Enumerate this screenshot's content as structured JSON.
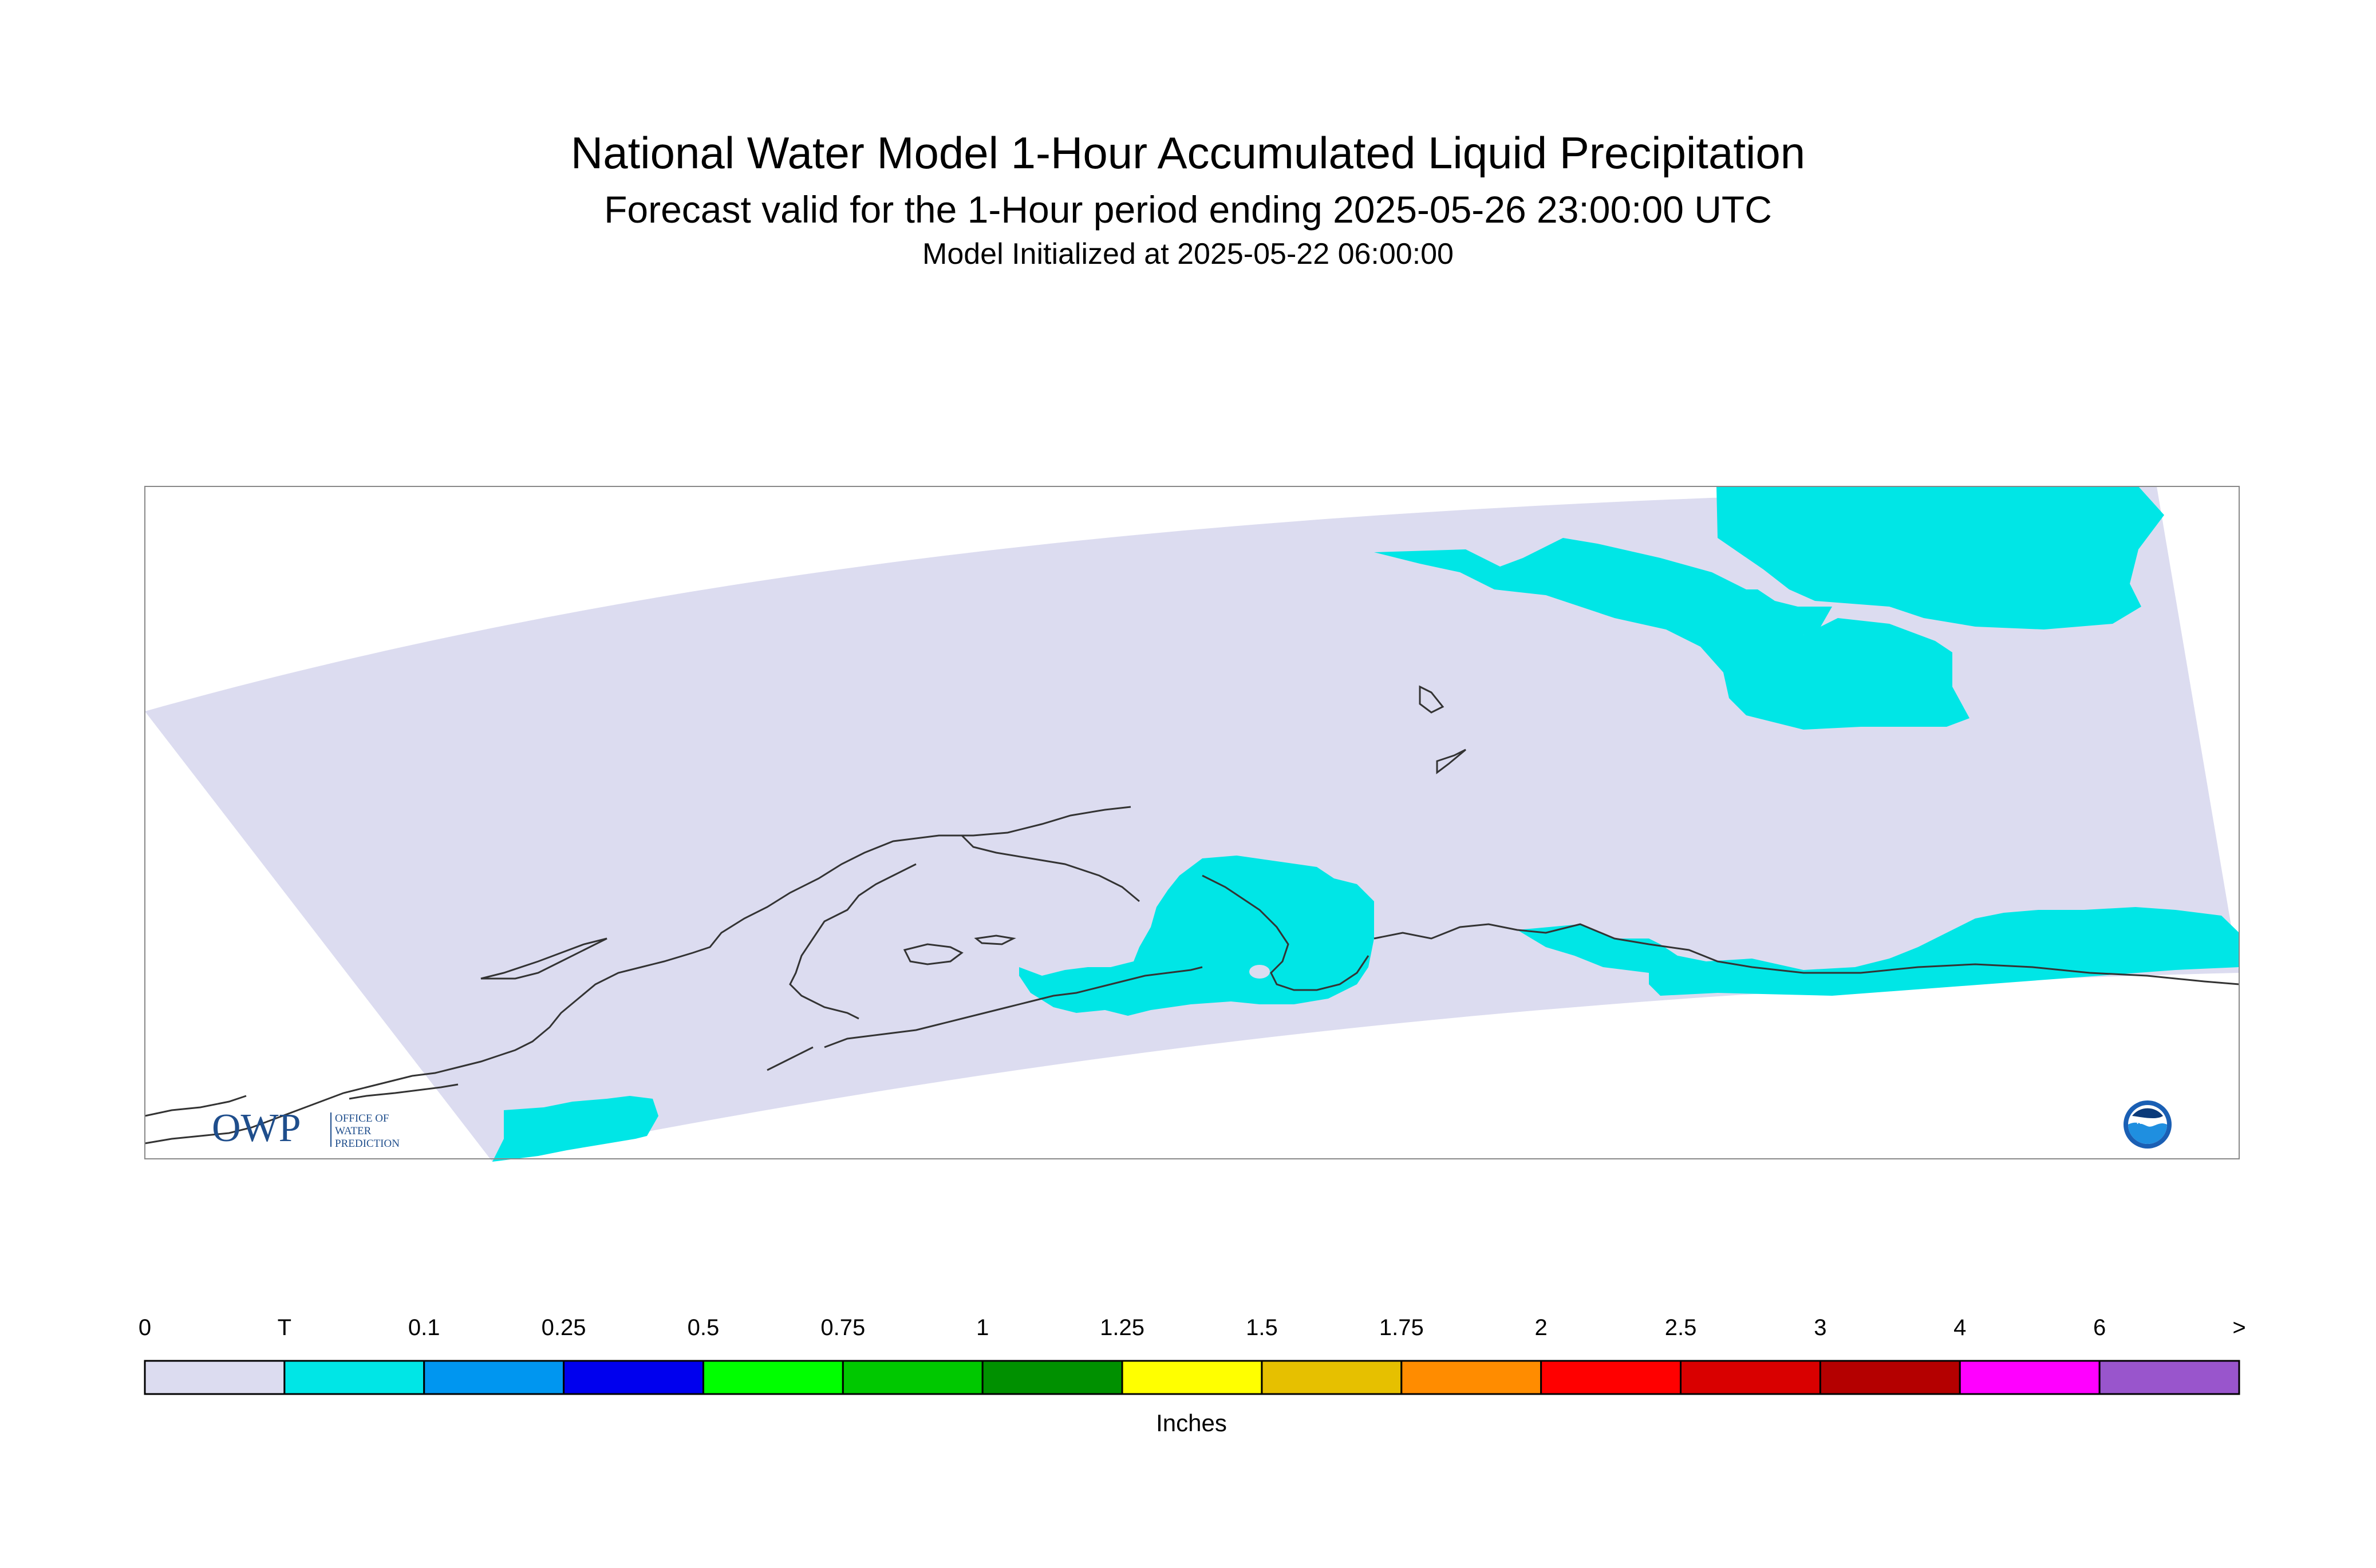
{
  "header": {
    "title": "National Water Model 1-Hour Accumulated Liquid Precipitation",
    "subtitle": "Forecast valid for the 1-Hour period ending 2025-05-26 23:00:00 UTC",
    "initialized": "Model Initialized at 2025-05-22 06:00:00"
  },
  "colorbar": {
    "units": "Inches",
    "labels": [
      "0",
      "T",
      "0.1",
      "0.25",
      "0.5",
      "0.75",
      "1",
      "1.25",
      "1.5",
      "1.75",
      "2",
      "2.5",
      "3",
      "4",
      "6",
      ">"
    ],
    "colors": [
      "#dcdcf0",
      "#00e6e6",
      "#0096f0",
      "#0000ee",
      "#00ff00",
      "#00c800",
      "#009000",
      "#ffff00",
      "#e6c000",
      "#ff8c00",
      "#ff0000",
      "#d90000",
      "#b40000",
      "#ff00ff",
      "#9955cc"
    ]
  },
  "map": {
    "domain_fill": "#dcdcf0",
    "trace_precip_fill": "#00e6e6",
    "coastline_color": "#333333"
  },
  "logos": {
    "owp_mark": "OWP",
    "owp_line1": "OFFICE OF",
    "owp_line2": "WATER",
    "owp_line3": "PREDICTION",
    "noaa_mark": "NOAA"
  }
}
